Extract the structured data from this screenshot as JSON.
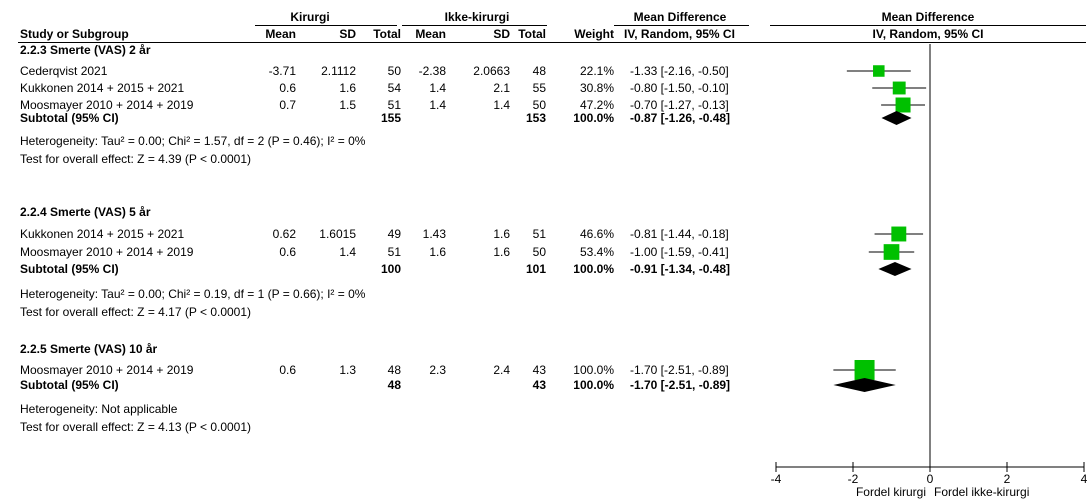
{
  "header": {
    "group1": "Kirurgi",
    "group2": "Ikke-kirurgi",
    "md_title": "Mean Difference",
    "plot_title": "Mean Difference",
    "study": "Study or Subgroup",
    "mean1": "Mean",
    "sd1": "SD",
    "total1": "Total",
    "mean2": "Mean",
    "sd2": "SD",
    "total2": "Total",
    "weight": "Weight",
    "md_method": "IV, Random, 95% CI",
    "plot_method": "IV, Random, 95% CI"
  },
  "subgroups": [
    {
      "title": "2.2.3 Smerte (VAS) 2 år",
      "studies": [
        {
          "name": "Cederqvist 2021",
          "m1": "-3.71",
          "sd1": "2.1112",
          "n1": "50",
          "m2": "-2.38",
          "sd2": "2.0663",
          "n2": "48",
          "weight": "22.1%",
          "ci": "-1.33 [-2.16, -0.50]"
        },
        {
          "name": "Kukkonen 2014 + 2015 + 2021",
          "m1": "0.6",
          "sd1": "1.6",
          "n1": "54",
          "m2": "1.4",
          "sd2": "2.1",
          "n2": "55",
          "weight": "30.8%",
          "ci": "-0.80 [-1.50, -0.10]"
        },
        {
          "name": "Moosmayer 2010 + 2014 + 2019",
          "m1": "0.7",
          "sd1": "1.5",
          "n1": "51",
          "m2": "1.4",
          "sd2": "1.4",
          "n2": "50",
          "weight": "47.2%",
          "ci": "-0.70 [-1.27, -0.13]"
        }
      ],
      "subtotal": {
        "label": "Subtotal (95% CI)",
        "n1": "155",
        "n2": "153",
        "weight": "100.0%",
        "ci": "-0.87 [-1.26, -0.48]"
      },
      "heterogeneity": "Heterogeneity: Tau² = 0.00; Chi² = 1.57, df = 2 (P = 0.46); I² = 0%",
      "overall": "Test for overall effect: Z = 4.39 (P < 0.0001)"
    },
    {
      "title": "2.2.4 Smerte (VAS) 5 år",
      "studies": [
        {
          "name": "Kukkonen 2014 + 2015 + 2021",
          "m1": "0.62",
          "sd1": "1.6015",
          "n1": "49",
          "m2": "1.43",
          "sd2": "1.6",
          "n2": "51",
          "weight": "46.6%",
          "ci": "-0.81 [-1.44, -0.18]"
        },
        {
          "name": "Moosmayer 2010 + 2014 + 2019",
          "m1": "0.6",
          "sd1": "1.4",
          "n1": "51",
          "m2": "1.6",
          "sd2": "1.6",
          "n2": "50",
          "weight": "53.4%",
          "ci": "-1.00 [-1.59, -0.41]"
        }
      ],
      "subtotal": {
        "label": "Subtotal (95% CI)",
        "n1": "100",
        "n2": "101",
        "weight": "100.0%",
        "ci": "-0.91 [-1.34, -0.48]"
      },
      "heterogeneity": "Heterogeneity: Tau² = 0.00; Chi² = 0.19, df = 1 (P = 0.66); I² = 0%",
      "overall": "Test for overall effect: Z = 4.17 (P < 0.0001)"
    },
    {
      "title": "2.2.5 Smerte (VAS) 10 år",
      "studies": [
        {
          "name": "Moosmayer 2010 + 2014 + 2019",
          "m1": "0.6",
          "sd1": "1.3",
          "n1": "48",
          "m2": "2.3",
          "sd2": "2.4",
          "n2": "43",
          "weight": "100.0%",
          "ci": "-1.70 [-2.51, -0.89]"
        }
      ],
      "subtotal": {
        "label": "Subtotal (95% CI)",
        "n1": "48",
        "n2": "43",
        "weight": "100.0%",
        "ci": "-1.70 [-2.51, -0.89]"
      },
      "heterogeneity": "Heterogeneity: Not applicable",
      "overall": "Test for overall effect: Z = 4.13 (P < 0.0001)"
    }
  ],
  "chart_data": {
    "type": "forest",
    "xlim": [
      -4,
      4
    ],
    "ticks": [
      "-4",
      "-2",
      "0",
      "2",
      "4"
    ],
    "tick_values": [
      -4,
      -2,
      0,
      2,
      4
    ],
    "xlabel_left": "Fordel kirurgi",
    "xlabel_right": "Fordel ikke-kirurgi",
    "square_color": "#00c000",
    "diamond_color": "#000000",
    "points": [
      {
        "study": "Cederqvist 2021",
        "group": "2.2.3",
        "md": -1.33,
        "lo": -2.16,
        "hi": -0.5,
        "weight": 22.1
      },
      {
        "study": "Kukkonen 2014 + 2015 + 2021",
        "group": "2.2.3",
        "md": -0.8,
        "lo": -1.5,
        "hi": -0.1,
        "weight": 30.8
      },
      {
        "study": "Moosmayer 2010 + 2014 + 2019",
        "group": "2.2.3",
        "md": -0.7,
        "lo": -1.27,
        "hi": -0.13,
        "weight": 47.2
      },
      {
        "study": "Kukkonen 2014 + 2015 + 2021",
        "group": "2.2.4",
        "md": -0.81,
        "lo": -1.44,
        "hi": -0.18,
        "weight": 46.6
      },
      {
        "study": "Moosmayer 2010 + 2014 + 2019",
        "group": "2.2.4",
        "md": -1.0,
        "lo": -1.59,
        "hi": -0.41,
        "weight": 53.4
      },
      {
        "study": "Moosmayer 2010 + 2014 + 2019",
        "group": "2.2.5",
        "md": -1.7,
        "lo": -2.51,
        "hi": -0.89,
        "weight": 100.0
      }
    ],
    "subtotals": [
      {
        "group": "2.2.3",
        "md": -0.87,
        "lo": -1.26,
        "hi": -0.48
      },
      {
        "group": "2.2.4",
        "md": -0.91,
        "lo": -1.34,
        "hi": -0.48
      },
      {
        "group": "2.2.5",
        "md": -1.7,
        "lo": -2.51,
        "hi": -0.89
      }
    ]
  }
}
